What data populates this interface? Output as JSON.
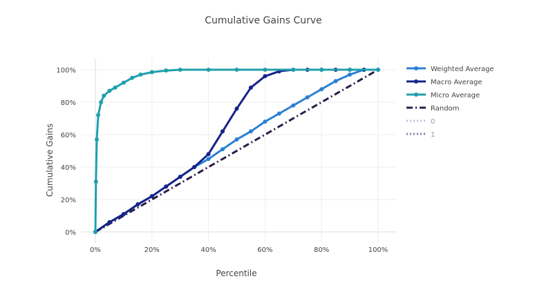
{
  "chart_data": {
    "type": "line",
    "title": "Cumulative Gains Curve",
    "xlabel": "Percentile",
    "ylabel": "Cumulative Gains",
    "xlim": [
      0,
      1
    ],
    "ylim": [
      0,
      1
    ],
    "x_ticks": [
      0,
      0.2,
      0.4,
      0.6,
      0.8,
      1.0
    ],
    "x_tick_labels": [
      "0%",
      "20%",
      "40%",
      "60%",
      "80%",
      "100%"
    ],
    "y_ticks": [
      0,
      0.2,
      0.4,
      0.6,
      0.8,
      1.0
    ],
    "y_tick_labels": [
      "0%",
      "20%",
      "40%",
      "60%",
      "80%",
      "100%"
    ],
    "grid": true,
    "legend_position": "right",
    "series": [
      {
        "name": "Weighted Average",
        "color": "#2a7fd4",
        "dash": "solid",
        "markers": true,
        "x": [
          0,
          0.05,
          0.1,
          0.15,
          0.2,
          0.25,
          0.3,
          0.35,
          0.4,
          0.45,
          0.5,
          0.55,
          0.6,
          0.65,
          0.7,
          0.75,
          0.8,
          0.85,
          0.9,
          0.95,
          1.0
        ],
        "y": [
          0,
          0.06,
          0.11,
          0.17,
          0.22,
          0.28,
          0.34,
          0.4,
          0.45,
          0.51,
          0.57,
          0.62,
          0.68,
          0.73,
          0.78,
          0.83,
          0.88,
          0.93,
          0.97,
          1.0,
          1.0
        ]
      },
      {
        "name": "Macro Average",
        "color": "#15238a",
        "dash": "solid",
        "markers": true,
        "x": [
          0,
          0.05,
          0.1,
          0.15,
          0.2,
          0.25,
          0.3,
          0.35,
          0.4,
          0.45,
          0.5,
          0.55,
          0.6,
          0.65,
          0.7,
          0.75,
          0.8,
          0.85,
          0.9,
          0.95,
          1.0
        ],
        "y": [
          0,
          0.06,
          0.11,
          0.17,
          0.22,
          0.28,
          0.34,
          0.4,
          0.48,
          0.62,
          0.76,
          0.89,
          0.96,
          0.99,
          1.0,
          1.0,
          1.0,
          1.0,
          1.0,
          1.0,
          1.0
        ]
      },
      {
        "name": "Micro Average",
        "color": "#1f9fad",
        "dash": "solid",
        "markers": true,
        "x": [
          0,
          0.002,
          0.005,
          0.01,
          0.02,
          0.03,
          0.05,
          0.07,
          0.1,
          0.13,
          0.16,
          0.2,
          0.25,
          0.3,
          0.4,
          0.5,
          0.6,
          0.7,
          0.8,
          0.9,
          1.0
        ],
        "y": [
          0,
          0.31,
          0.57,
          0.72,
          0.8,
          0.84,
          0.87,
          0.89,
          0.92,
          0.95,
          0.97,
          0.985,
          0.995,
          1.0,
          1.0,
          1.0,
          1.0,
          1.0,
          1.0,
          1.0,
          1.0
        ]
      },
      {
        "name": "Random",
        "color": "#2c1c4a",
        "dash": "dashdot",
        "markers": false,
        "x": [
          0,
          1
        ],
        "y": [
          0,
          1
        ]
      }
    ],
    "hidden_legend_entries": [
      {
        "name": "0",
        "color": "#c9b8dd",
        "dash": "dot"
      },
      {
        "name": "1",
        "color": "#8e7aa6",
        "dash": "dot"
      }
    ]
  }
}
